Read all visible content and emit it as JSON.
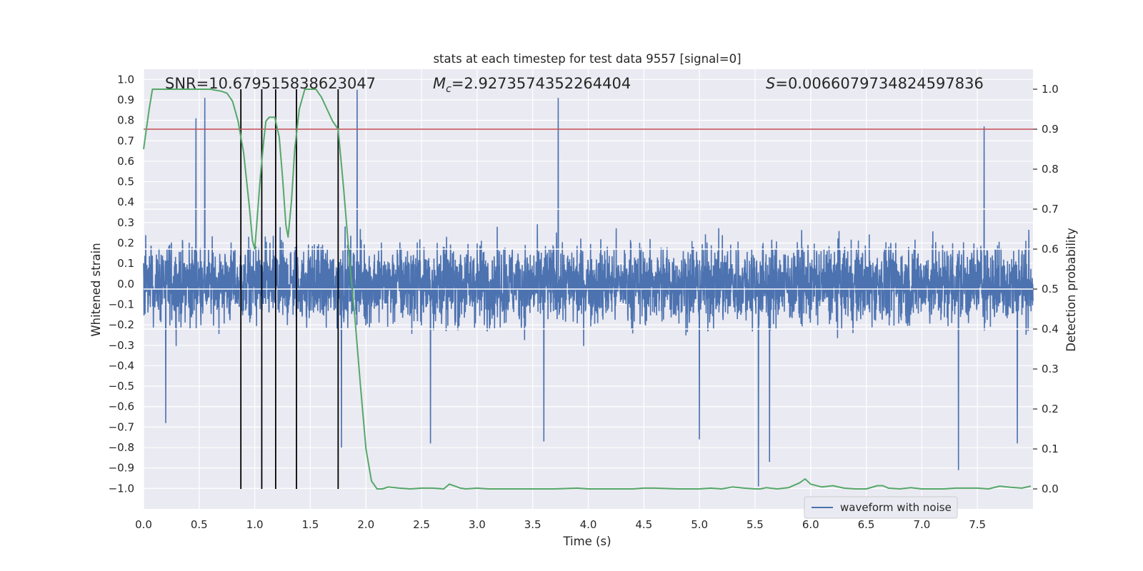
{
  "chart_data": {
    "type": "line",
    "title": "stats at each timestep for test data 9557 [signal=0]",
    "xlabel": "Time (s)",
    "ylabel": "Whitened strain",
    "y2label": "Detection probability",
    "xlim": [
      0.0,
      8.0
    ],
    "ylim": [
      -1.1,
      1.05
    ],
    "y2lim": [
      -0.05,
      1.05
    ],
    "x_ticks": [
      "0.0",
      "0.5",
      "1.0",
      "1.5",
      "2.0",
      "2.5",
      "3.0",
      "3.5",
      "4.0",
      "4.5",
      "5.0",
      "5.5",
      "6.0",
      "6.5",
      "7.0",
      "7.5"
    ],
    "x_tick_values": [
      0.0,
      0.5,
      1.0,
      1.5,
      2.0,
      2.5,
      3.0,
      3.5,
      4.0,
      4.5,
      5.0,
      5.5,
      6.0,
      6.5,
      7.0,
      7.5
    ],
    "y_ticks": [
      "−1.0",
      "−0.9",
      "−0.8",
      "−0.7",
      "−0.6",
      "−0.5",
      "−0.4",
      "−0.3",
      "−0.2",
      "−0.1",
      "0.0",
      "0.1",
      "0.2",
      "0.3",
      "0.4",
      "0.5",
      "0.6",
      "0.7",
      "0.8",
      "0.9",
      "1.0"
    ],
    "y_tick_values": [
      -1.0,
      -0.9,
      -0.8,
      -0.7,
      -0.6,
      -0.5,
      -0.4,
      -0.3,
      -0.2,
      -0.1,
      0.0,
      0.1,
      0.2,
      0.3,
      0.4,
      0.5,
      0.6,
      0.7,
      0.8,
      0.9,
      1.0
    ],
    "y2_ticks": [
      "0.0",
      "0.1",
      "0.2",
      "0.3",
      "0.4",
      "0.5",
      "0.6",
      "0.7",
      "0.8",
      "0.9",
      "1.0"
    ],
    "y2_tick_values": [
      0.0,
      0.1,
      0.2,
      0.3,
      0.4,
      0.5,
      0.6,
      0.7,
      0.8,
      0.9,
      1.0
    ],
    "grid": true,
    "legend": {
      "placement": "lower-right",
      "entries": [
        "waveform with noise"
      ]
    },
    "annotations": {
      "snr": "SNR=10.679515838623047",
      "mc_symbol": "M",
      "mc_sub": "c",
      "mc_value": "=2.9273574352264404",
      "s_symbol": "S",
      "s_value": "=0.0066079734824597836"
    },
    "threshold_probability": 0.9,
    "vertical_markers_s": [
      0.875,
      1.063,
      1.188,
      1.375,
      1.75
    ],
    "waveform_envelope": {
      "typical_range": [
        -0.45,
        0.45
      ],
      "peaks": [
        {
          "x": 0.47,
          "y": 0.81
        },
        {
          "x": 0.55,
          "y": 0.91
        },
        {
          "x": 1.92,
          "y": 0.95
        },
        {
          "x": 3.73,
          "y": 0.91
        },
        {
          "x": 7.56,
          "y": 0.77
        },
        {
          "x": 5.53,
          "y": -0.99
        },
        {
          "x": 5.63,
          "y": -0.87
        },
        {
          "x": 7.33,
          "y": -0.91
        },
        {
          "x": 1.78,
          "y": -0.8
        },
        {
          "x": 2.58,
          "y": -0.78
        },
        {
          "x": 7.86,
          "y": -0.78
        },
        {
          "x": 0.2,
          "y": -0.68
        },
        {
          "x": 3.6,
          "y": -0.77
        },
        {
          "x": 5.0,
          "y": -0.76
        }
      ]
    },
    "series": [
      {
        "name": "waveform with noise",
        "color": "#4c72b0"
      },
      {
        "color": "#55a868",
        "x": [
          0.0,
          0.05,
          0.08,
          0.12,
          0.2,
          0.3,
          0.4,
          0.5,
          0.6,
          0.7,
          0.75,
          0.8,
          0.85,
          0.9,
          0.95,
          0.98,
          1.0,
          1.02,
          1.05,
          1.08,
          1.1,
          1.13,
          1.18,
          1.22,
          1.25,
          1.28,
          1.3,
          1.33,
          1.36,
          1.4,
          1.45,
          1.5,
          1.55,
          1.6,
          1.65,
          1.7,
          1.75,
          1.8,
          1.85,
          1.9,
          1.95,
          2.0,
          2.05,
          2.1,
          2.15,
          2.2,
          2.3,
          2.4,
          2.5,
          2.6,
          2.7,
          2.75,
          2.8,
          2.85,
          2.9,
          3.0,
          3.1,
          3.2,
          3.3,
          3.5,
          3.7,
          3.9,
          4.0,
          4.2,
          4.4,
          4.5,
          4.6,
          4.8,
          5.0,
          5.1,
          5.2,
          5.3,
          5.4,
          5.5,
          5.55,
          5.6,
          5.7,
          5.8,
          5.9,
          5.95,
          6.0,
          6.1,
          6.2,
          6.3,
          6.4,
          6.5,
          6.6,
          6.65,
          6.7,
          6.8,
          6.9,
          7.0,
          7.1,
          7.2,
          7.3,
          7.4,
          7.5,
          7.6,
          7.7,
          7.8,
          7.9,
          7.98
        ],
        "y": [
          0.85,
          0.95,
          1.0,
          1.0,
          1.0,
          1.0,
          1.0,
          1.0,
          1.0,
          0.995,
          0.99,
          0.97,
          0.92,
          0.84,
          0.71,
          0.62,
          0.6,
          0.67,
          0.78,
          0.87,
          0.92,
          0.93,
          0.93,
          0.88,
          0.78,
          0.66,
          0.63,
          0.72,
          0.85,
          0.95,
          1.0,
          1.0,
          1.0,
          0.98,
          0.95,
          0.92,
          0.9,
          0.75,
          0.58,
          0.43,
          0.26,
          0.1,
          0.02,
          0.0,
          0.0,
          0.005,
          0.002,
          0.0,
          0.002,
          0.002,
          0.0,
          0.012,
          0.007,
          0.002,
          0.0,
          0.002,
          0.0,
          0.0,
          0.0,
          0.0,
          0.0,
          0.002,
          0.0,
          0.0,
          0.0,
          0.002,
          0.002,
          0.0,
          0.0,
          0.002,
          0.0,
          0.005,
          0.002,
          0.0,
          0.0,
          0.003,
          0.0,
          0.003,
          0.015,
          0.025,
          0.012,
          0.005,
          0.008,
          0.002,
          0.0,
          0.0,
          0.008,
          0.008,
          0.002,
          0.0,
          0.003,
          0.0,
          0.0,
          0.0,
          0.002,
          0.002,
          0.002,
          0.0,
          0.007,
          0.004,
          0.002,
          0.007
        ]
      }
    ],
    "colors": {
      "background": "#eaeaf2",
      "grid": "#ffffff",
      "waveform": "#4c72b0",
      "probability": "#55a868",
      "threshold": "#c44e52",
      "markers": "#000000"
    }
  }
}
